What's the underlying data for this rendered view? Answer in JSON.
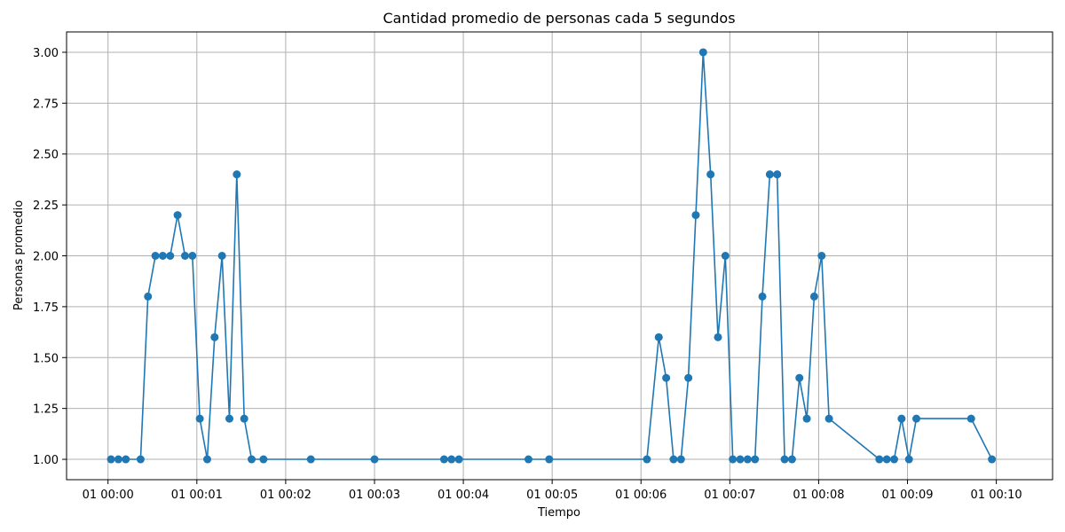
{
  "chart_data": {
    "type": "line",
    "title": "Cantidad promedio de personas cada 5 segundos",
    "xlabel": "Tiempo",
    "ylabel": "Personas promedio",
    "x_unit": "seconds",
    "xlim": [
      -28,
      638
    ],
    "ylim": [
      0.9,
      3.1
    ],
    "grid": true,
    "marker": "circle",
    "color": "#1f77b4",
    "x_ticks": [
      {
        "value": 0,
        "label": "01 00:00"
      },
      {
        "value": 60,
        "label": "01 00:01"
      },
      {
        "value": 120,
        "label": "01 00:02"
      },
      {
        "value": 180,
        "label": "01 00:03"
      },
      {
        "value": 240,
        "label": "01 00:04"
      },
      {
        "value": 300,
        "label": "01 00:05"
      },
      {
        "value": 360,
        "label": "01 00:06"
      },
      {
        "value": 420,
        "label": "01 00:07"
      },
      {
        "value": 480,
        "label": "01 00:08"
      },
      {
        "value": 540,
        "label": "01 00:09"
      },
      {
        "value": 600,
        "label": "01 00:10"
      }
    ],
    "y_ticks": [
      {
        "value": 1.0,
        "label": "1.00"
      },
      {
        "value": 1.25,
        "label": "1.25"
      },
      {
        "value": 1.5,
        "label": "1.50"
      },
      {
        "value": 1.75,
        "label": "1.75"
      },
      {
        "value": 2.0,
        "label": "2.00"
      },
      {
        "value": 2.25,
        "label": "2.25"
      },
      {
        "value": 2.5,
        "label": "2.50"
      },
      {
        "value": 2.75,
        "label": "2.75"
      },
      {
        "value": 3.0,
        "label": "3.00"
      }
    ],
    "series": [
      {
        "x": [
          2,
          7,
          12,
          22,
          27,
          32,
          37,
          42,
          47,
          52,
          57,
          62,
          67,
          72,
          77,
          82,
          87,
          92,
          97,
          105,
          137,
          180,
          227,
          232,
          237,
          284,
          298,
          364,
          372,
          377,
          382,
          387,
          392,
          397,
          402,
          407,
          412,
          417,
          422,
          427,
          432,
          437,
          442,
          447,
          452,
          457,
          462,
          467,
          472,
          477,
          482,
          487,
          521,
          526,
          531,
          536,
          541,
          546,
          583,
          597
        ],
        "y": [
          1.0,
          1.0,
          1.0,
          1.0,
          1.8,
          2.0,
          2.0,
          2.0,
          2.2,
          2.0,
          2.0,
          1.2,
          1.0,
          1.6,
          2.0,
          1.2,
          2.4,
          1.2,
          1.0,
          1.0,
          1.0,
          1.0,
          1.0,
          1.0,
          1.0,
          1.0,
          1.0,
          1.0,
          1.6,
          1.4,
          1.0,
          1.0,
          1.4,
          2.2,
          3.0,
          2.4,
          1.6,
          2.0,
          1.0,
          1.0,
          1.0,
          1.0,
          1.8,
          2.4,
          2.4,
          1.0,
          1.0,
          1.4,
          1.2,
          1.8,
          2.0,
          1.2,
          1.0,
          1.0,
          1.0,
          1.2,
          1.0,
          1.2,
          1.2,
          1.0
        ]
      }
    ]
  }
}
